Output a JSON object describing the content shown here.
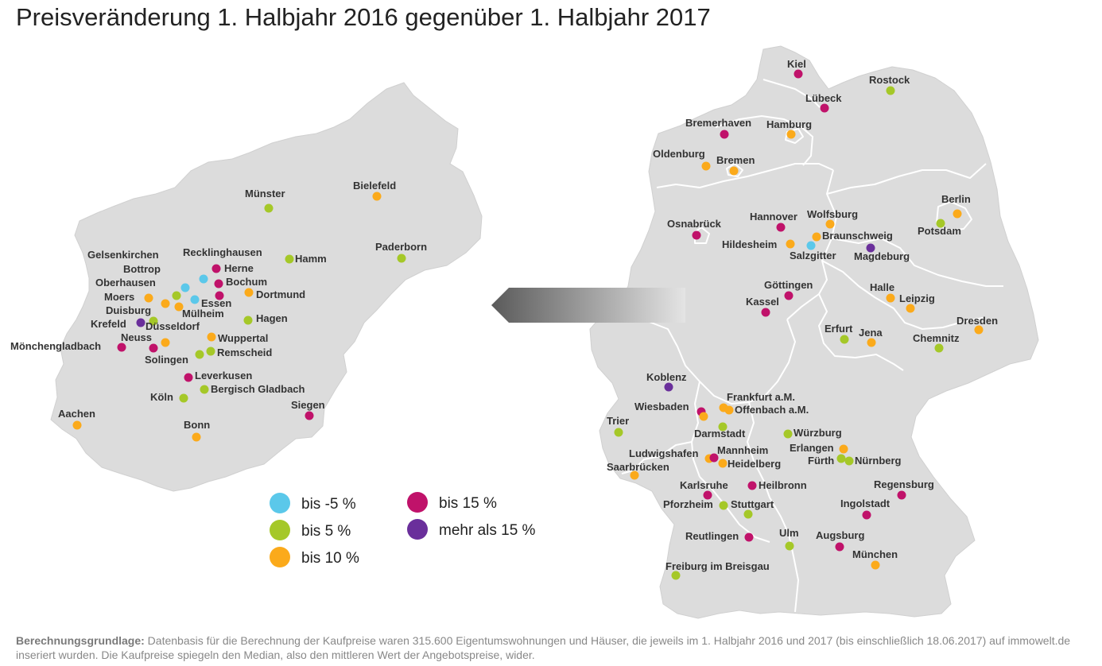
{
  "title": "Preisveränderung 1. Halbjahr 2016 gegenüber 1. Halbjahr 2017",
  "colors": {
    "bis_minus_5": "#5bc8ea",
    "bis_5": "#a5c828",
    "bis_10": "#fbaa1b",
    "bis_15": "#c0126a",
    "mehr_als_15": "#6a2f9b",
    "map_fill": "#dcdcdc",
    "border": "#ffffff"
  },
  "legend": [
    {
      "label": "bis -5 %",
      "cat": "bis_minus_5"
    },
    {
      "label": "bis 5 %",
      "cat": "bis_5"
    },
    {
      "label": "bis 10 %",
      "cat": "bis_10"
    },
    {
      "label": "bis 15 %",
      "cat": "bis_15"
    },
    {
      "label": "mehr als 15 %",
      "cat": "mehr_als_15"
    }
  ],
  "nrw_cities": [
    {
      "name": "Münster",
      "cat": "bis_5"
    },
    {
      "name": "Bielefeld",
      "cat": "bis_10"
    },
    {
      "name": "Paderborn",
      "cat": "bis_5"
    },
    {
      "name": "Hamm",
      "cat": "bis_5"
    },
    {
      "name": "Recklinghausen",
      "cat": "bis_15"
    },
    {
      "name": "Herne",
      "cat": "bis_15"
    },
    {
      "name": "Gelsenkirchen",
      "cat": "bis_minus_5"
    },
    {
      "name": "Bottrop",
      "cat": "bis_minus_5"
    },
    {
      "name": "Oberhausen",
      "cat": "bis_5"
    },
    {
      "name": "Bochum",
      "cat": "bis_15"
    },
    {
      "name": "Moers",
      "cat": "bis_10"
    },
    {
      "name": "Essen",
      "cat": "bis_minus_5"
    },
    {
      "name": "Dortmund",
      "cat": "bis_10"
    },
    {
      "name": "Duisburg",
      "cat": "bis_10"
    },
    {
      "name": "Mülheim",
      "cat": "bis_10"
    },
    {
      "name": "Krefeld",
      "cat": "mehr_als_15"
    },
    {
      "name": "Düsseldorf",
      "cat": "bis_5"
    },
    {
      "name": "Hagen",
      "cat": "bis_5"
    },
    {
      "name": "Neuss",
      "cat": "bis_10"
    },
    {
      "name": "Wuppertal",
      "cat": "bis_10"
    },
    {
      "name": "Mönchengladbach",
      "cat": "bis_15"
    },
    {
      "name": "Solingen",
      "cat": "bis_15"
    },
    {
      "name": "Remscheid",
      "cat": "bis_5"
    },
    {
      "name": "Leverkusen",
      "cat": "bis_15"
    },
    {
      "name": "Bergisch Gladbach",
      "cat": "bis_5"
    },
    {
      "name": "Köln",
      "cat": "bis_5"
    },
    {
      "name": "Siegen",
      "cat": "bis_15"
    },
    {
      "name": "Aachen",
      "cat": "bis_10"
    },
    {
      "name": "Bonn",
      "cat": "bis_10"
    }
  ],
  "de_cities": [
    {
      "name": "Kiel",
      "cat": "bis_15"
    },
    {
      "name": "Rostock",
      "cat": "bis_5"
    },
    {
      "name": "Lübeck",
      "cat": "bis_15"
    },
    {
      "name": "Bremerhaven",
      "cat": "bis_15"
    },
    {
      "name": "Hamburg",
      "cat": "bis_10"
    },
    {
      "name": "Oldenburg",
      "cat": "bis_10"
    },
    {
      "name": "Bremen",
      "cat": "bis_10"
    },
    {
      "name": "Berlin",
      "cat": "bis_10"
    },
    {
      "name": "Potsdam",
      "cat": "bis_5"
    },
    {
      "name": "Osnabrück",
      "cat": "bis_15"
    },
    {
      "name": "Hannover",
      "cat": "bis_15"
    },
    {
      "name": "Wolfsburg",
      "cat": "bis_10"
    },
    {
      "name": "Braunschweig",
      "cat": "bis_10"
    },
    {
      "name": "Hildesheim",
      "cat": "bis_10"
    },
    {
      "name": "Salzgitter",
      "cat": "bis_minus_5"
    },
    {
      "name": "Magdeburg",
      "cat": "mehr_als_15"
    },
    {
      "name": "Göttingen",
      "cat": "bis_15"
    },
    {
      "name": "Kassel",
      "cat": "bis_15"
    },
    {
      "name": "Halle",
      "cat": "bis_10"
    },
    {
      "name": "Leipzig",
      "cat": "bis_10"
    },
    {
      "name": "Dresden",
      "cat": "bis_10"
    },
    {
      "name": "Erfurt",
      "cat": "bis_5"
    },
    {
      "name": "Jena",
      "cat": "bis_10"
    },
    {
      "name": "Chemnitz",
      "cat": "bis_5"
    },
    {
      "name": "Koblenz",
      "cat": "mehr_als_15"
    },
    {
      "name": "Frankfurt a.M.",
      "cat": "bis_10"
    },
    {
      "name": "Wiesbaden",
      "cat": "bis_15"
    },
    {
      "name": "Offenbach a.M.",
      "cat": "bis_10"
    },
    {
      "name": "Trier",
      "cat": "bis_5"
    },
    {
      "name": "Darmstadt",
      "cat": "bis_5"
    },
    {
      "name": "Würzburg",
      "cat": "bis_5"
    },
    {
      "name": "Ludwigshafen",
      "cat": "bis_10"
    },
    {
      "name": "Mannheim",
      "cat": "bis_15"
    },
    {
      "name": "Erlangen",
      "cat": "bis_10"
    },
    {
      "name": "Heidelberg",
      "cat": "bis_10"
    },
    {
      "name": "Fürth",
      "cat": "bis_5"
    },
    {
      "name": "Nürnberg",
      "cat": "bis_5"
    },
    {
      "name": "Saarbrücken",
      "cat": "bis_10"
    },
    {
      "name": "Regensburg",
      "cat": "bis_15"
    },
    {
      "name": "Karlsruhe",
      "cat": "bis_15"
    },
    {
      "name": "Heilbronn",
      "cat": "bis_15"
    },
    {
      "name": "Ingolstadt",
      "cat": "bis_15"
    },
    {
      "name": "Pforzheim",
      "cat": "bis_5"
    },
    {
      "name": "Stuttgart",
      "cat": "bis_5"
    },
    {
      "name": "Reutlingen",
      "cat": "bis_15"
    },
    {
      "name": "Ulm",
      "cat": "bis_5"
    },
    {
      "name": "Augsburg",
      "cat": "bis_15"
    },
    {
      "name": "München",
      "cat": "bis_10"
    },
    {
      "name": "Freiburg im Breisgau",
      "cat": "bis_5"
    }
  ],
  "footnote": {
    "bold": "Berechnungsgrundlage:",
    "text": " Datenbasis für die Berechnung der Kaufpreise waren 315.600 Eigentumswohnungen und Häuser, die jeweils im 1. Halbjahr 2016 und 2017 (bis einschließlich 18.06.2017) auf immowelt.de inseriert wurden. Die Kaufpreise spiegeln den Median, also den mittleren Wert der Angebotspreise, wider."
  }
}
